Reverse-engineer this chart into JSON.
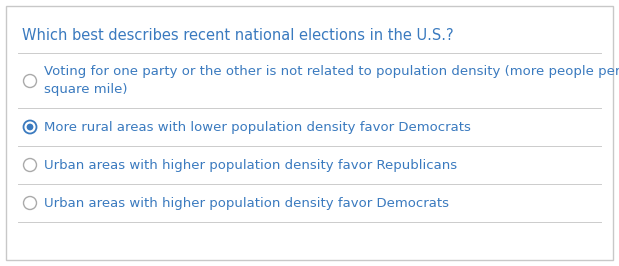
{
  "title": "Which best describes recent national elections in the U.S.?",
  "title_color": "#3a7abf",
  "title_fontsize": 10.5,
  "options": [
    {
      "text": "Voting for one party or the other is not related to population density (more people per\nsquare mile)",
      "selected": false,
      "color": "#3a7abf"
    },
    {
      "text": "More rural areas with lower population density favor Democrats",
      "selected": true,
      "color": "#3a7abf"
    },
    {
      "text": "Urban areas with higher population density favor Republicans",
      "selected": false,
      "color": "#3a7abf"
    },
    {
      "text": "Urban areas with higher population density favor Democrats",
      "selected": false,
      "color": "#3a7abf"
    }
  ],
  "option_fontsize": 9.5,
  "background_color": "#ffffff",
  "border_color": "#c8c8c8",
  "divider_color": "#cccccc",
  "radio_unselected_color": "#aaaaaa",
  "radio_selected_color": "#3a7abf",
  "radio_dot_color": "#3a7abf"
}
